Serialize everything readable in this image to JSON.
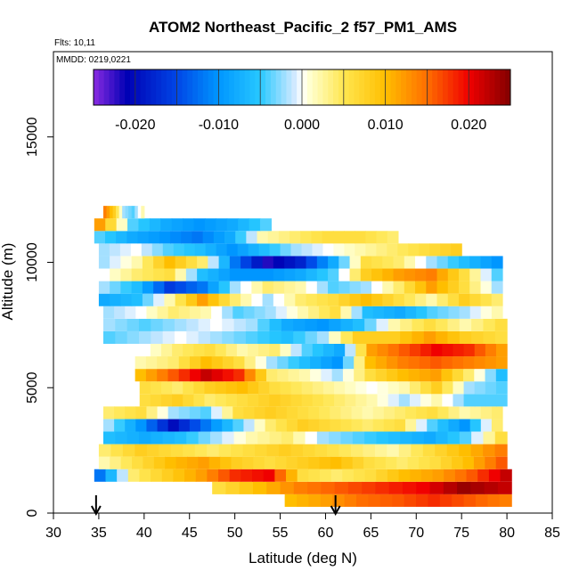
{
  "chart_data": {
    "type": "heatmap",
    "title": "ATOM2 Northeast_Pacific_2 f57_PM1_AMS",
    "flights_note": "Flts: 10,11",
    "dates_note": "MMDD: 0219,0221",
    "xlabel": "Latitude (deg N)",
    "ylabel": "Altitude (m)",
    "xlim": [
      30,
      85
    ],
    "ylim": [
      0,
      18400
    ],
    "x_ticks": [
      "30",
      "35",
      "40",
      "45",
      "50",
      "55",
      "60",
      "65",
      "70",
      "75",
      "80",
      "85"
    ],
    "y_ticks": [
      "0",
      "5000",
      "10000",
      "15000"
    ],
    "colorbar": {
      "range": [
        -0.025,
        0.025
      ],
      "tick_values": [
        -0.02,
        -0.01,
        0.0,
        0.01,
        0.02
      ],
      "tick_labels": [
        "-0.020",
        "-0.010",
        "0.000",
        "0.010",
        "0.020"
      ]
    },
    "arrows_lat": [
      34.7,
      61.1
    ],
    "band_height_m": 500,
    "bands": [
      {
        "alt": 500,
        "lat": [
          55.5,
          80.5
        ],
        "v": [
          0.01,
          0.012,
          0.015,
          0.016,
          0.018,
          0.016,
          0.014
        ]
      },
      {
        "alt": 1000,
        "lat": [
          47.5,
          80.5
        ],
        "v": [
          0.006,
          0.01,
          0.014,
          0.016,
          0.018,
          0.02,
          0.024,
          0.022
        ]
      },
      {
        "alt": 1500,
        "lat": [
          34.5,
          80.5
        ],
        "v": [
          -0.012,
          0.004,
          0.008,
          0.012,
          0.018,
          0.02,
          0.006,
          0.004,
          0.006,
          0.01,
          0.012,
          0.016,
          0.022
        ]
      },
      {
        "alt": 2000,
        "lat": [
          35.0,
          80.0
        ],
        "v": [
          0.002,
          0.006,
          0.01,
          0.012,
          0.008,
          0.006,
          0.008,
          0.01,
          0.006,
          0.004,
          0.006,
          0.01,
          0.016
        ]
      },
      {
        "alt": 2500,
        "lat": [
          35.0,
          80.0
        ],
        "v": [
          0.004,
          0.008,
          0.006,
          0.004,
          0.006,
          0.008,
          0.006,
          0.004,
          0.002,
          0.006,
          0.01,
          0.014
        ]
      },
      {
        "alt": 3000,
        "lat": [
          35.5,
          80.0
        ],
        "v": [
          -0.006,
          -0.008,
          -0.006,
          -0.002,
          0.002,
          0.004,
          -0.002,
          -0.004,
          -0.006,
          -0.008,
          -0.004,
          0.006
        ]
      },
      {
        "alt": 3500,
        "lat": [
          35.5,
          79.5
        ],
        "v": [
          -0.002,
          -0.01,
          -0.02,
          -0.012,
          -0.004,
          0.004,
          0.008,
          0.006,
          0.004,
          0.006,
          -0.004,
          -0.01,
          0.004
        ]
      },
      {
        "alt": 4000,
        "lat": [
          35.5,
          79.5
        ],
        "v": [
          0.004,
          0.006,
          -0.002,
          -0.004,
          0.006,
          0.008,
          0.006,
          0.004,
          0.002,
          0.004,
          0.006,
          0.002,
          0.004
        ]
      },
      {
        "alt": 4500,
        "lat": [
          39.5,
          80.0
        ],
        "v": [
          0.006,
          0.008,
          0.004,
          0.006,
          0.008,
          0.006,
          0.004,
          0.002,
          -0.002,
          0.002,
          -0.004,
          -0.004
        ]
      },
      {
        "alt": 5000,
        "lat": [
          39.5,
          80.0
        ],
        "v": [
          0.006,
          0.004,
          0.008,
          0.01,
          0.006,
          0.004,
          0.002,
          0.0,
          0.002,
          0.008,
          -0.002,
          -0.004
        ]
      },
      {
        "alt": 5500,
        "lat": [
          39.0,
          80.0
        ],
        "v": [
          0.01,
          0.016,
          0.022,
          0.018,
          0.004,
          0.002,
          -0.002,
          0.006,
          0.01,
          0.012,
          0.004,
          -0.006
        ]
      },
      {
        "alt": 6000,
        "lat": [
          39.0,
          80.0
        ],
        "v": [
          0.002,
          0.004,
          0.01,
          0.006,
          -0.002,
          -0.006,
          -0.01,
          0.01,
          0.014,
          0.016,
          0.014,
          0.012
        ]
      },
      {
        "alt": 6500,
        "lat": [
          39.5,
          80.0
        ],
        "v": [
          0.0,
          0.004,
          0.006,
          0.002,
          0.004,
          -0.004,
          -0.008,
          0.012,
          0.016,
          0.02,
          0.018,
          0.012
        ]
      },
      {
        "alt": 7000,
        "lat": [
          35.5,
          80.0
        ],
        "v": [
          -0.004,
          -0.002,
          0.0,
          -0.002,
          -0.004,
          -0.006,
          -0.002,
          0.008,
          0.008,
          0.012,
          0.008,
          0.006
        ]
      },
      {
        "alt": 7500,
        "lat": [
          35.5,
          80.0
        ],
        "v": [
          -0.002,
          -0.004,
          -0.002,
          0.0,
          -0.002,
          -0.008,
          -0.01,
          -0.006,
          0.002,
          0.006,
          0.002,
          0.006
        ]
      },
      {
        "alt": 8000,
        "lat": [
          35.5,
          79.5
        ],
        "v": [
          -0.002,
          0.0,
          0.004,
          0.002,
          -0.004,
          -0.002,
          0.002,
          0.006,
          -0.006,
          -0.008,
          -0.004,
          -0.002,
          0.002
        ]
      },
      {
        "alt": 8500,
        "lat": [
          35.0,
          79.5
        ],
        "v": [
          -0.008,
          -0.006,
          0.002,
          0.012,
          0.004,
          -0.002,
          0.004,
          0.006,
          0.01,
          0.006,
          0.002,
          0.008,
          0.004
        ]
      },
      {
        "alt": 9000,
        "lat": [
          35.0,
          79.5
        ],
        "v": [
          -0.002,
          -0.006,
          -0.016,
          -0.012,
          -0.002,
          0.004,
          0.002,
          -0.004,
          -0.002,
          0.004,
          0.012,
          0.006,
          -0.002
        ]
      },
      {
        "alt": 9500,
        "lat": [
          35.0,
          79.5
        ],
        "v": [
          0.0,
          0.004,
          0.006,
          -0.006,
          -0.01,
          -0.01,
          -0.008,
          -0.004,
          0.008,
          0.012,
          0.014,
          0.006,
          -0.004
        ]
      },
      {
        "alt": 10000,
        "lat": [
          35.0,
          79.5
        ],
        "v": [
          -0.002,
          0.002,
          0.01,
          0.004,
          -0.012,
          -0.022,
          -0.018,
          -0.008,
          0.006,
          0.004,
          -0.002,
          -0.006,
          -0.01
        ]
      },
      {
        "alt": 10500,
        "lat": [
          35.0,
          75.0
        ],
        "v": [
          -0.002,
          0.0,
          -0.004,
          -0.006,
          -0.01,
          -0.006,
          -0.002,
          0.0,
          0.002,
          0.004,
          0.006,
          0.008
        ]
      },
      {
        "alt": 11000,
        "lat": [
          34.5,
          68.0
        ],
        "v": [
          -0.004,
          -0.008,
          -0.01,
          -0.012,
          -0.008,
          0.002,
          0.004,
          0.006,
          0.006,
          0.004
        ]
      },
      {
        "alt": 11500,
        "lat": [
          34.5,
          54.0
        ],
        "v": [
          0.012,
          -0.004,
          -0.008,
          -0.01,
          -0.008,
          -0.004
        ]
      },
      {
        "alt": 12000,
        "lat": [
          35.5,
          40.0
        ],
        "v": [
          0.014,
          0.008,
          -0.002,
          -0.004,
          0.002
        ]
      }
    ]
  }
}
